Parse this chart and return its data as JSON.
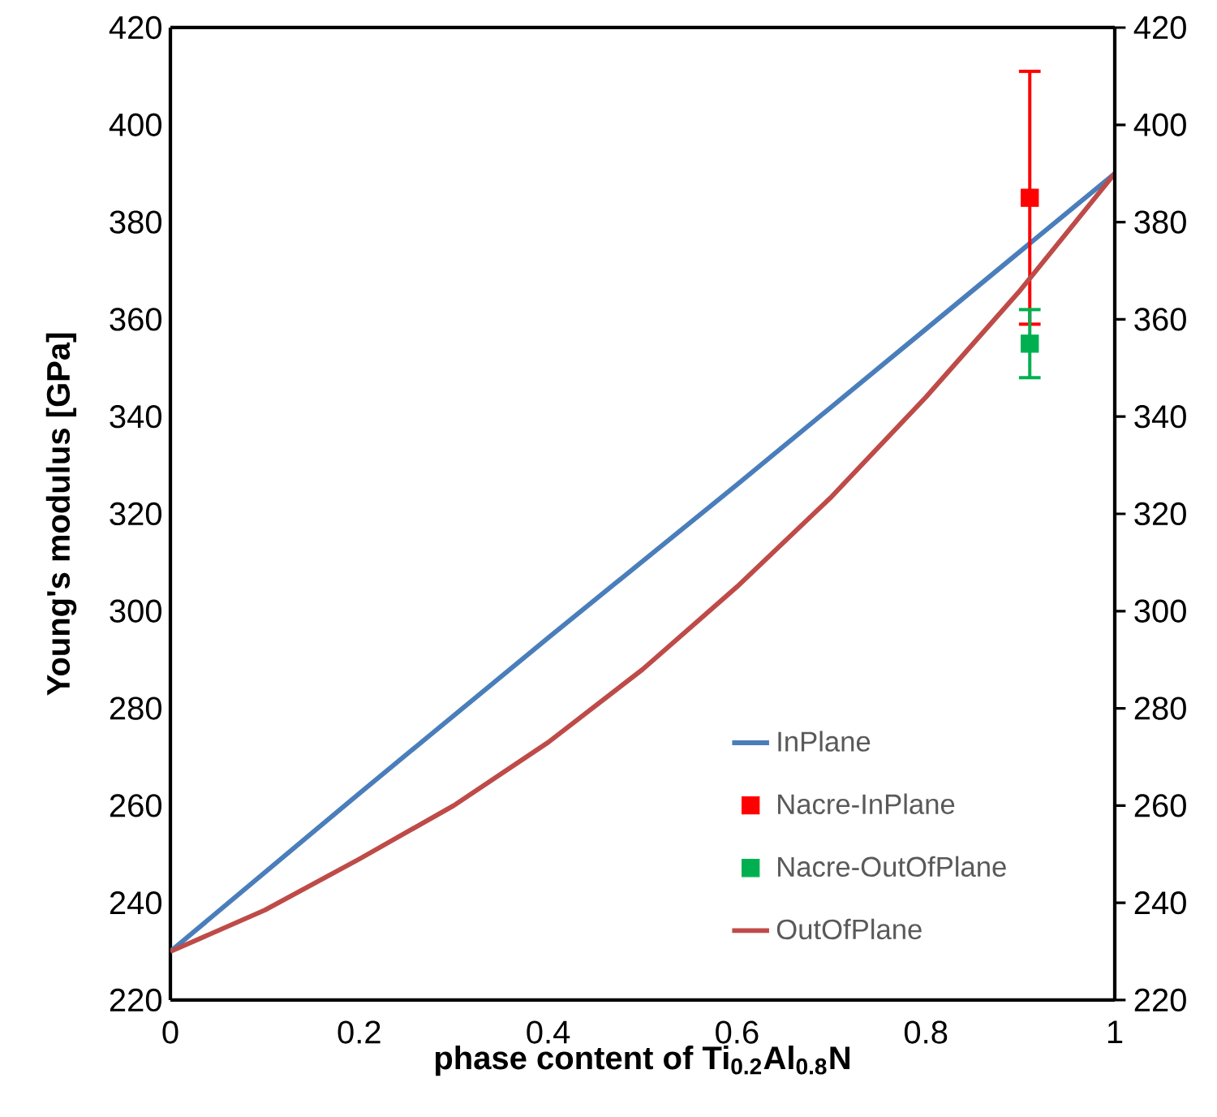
{
  "chart_data": {
    "type": "line",
    "xlabel": "phase content of Ti$_{0.2}$Al$_{0.8}$N",
    "ylabel": "Young's modulus [GPa]",
    "xlim": [
      0,
      1
    ],
    "xticks": [
      0,
      0.2,
      0.4,
      0.6,
      0.8,
      1
    ],
    "ylim": [
      220,
      420
    ],
    "yticks": [
      220,
      240,
      260,
      280,
      300,
      320,
      340,
      360,
      380,
      400,
      420
    ],
    "y2lim": [
      220,
      420
    ],
    "y2ticks": [
      220,
      240,
      260,
      280,
      300,
      320,
      340,
      360,
      380,
      400,
      420
    ],
    "legend": "bottom right",
    "grid": false,
    "series": [
      {
        "name": "InPlane",
        "color": "#4a7ebb",
        "marker": "none",
        "line_style": "solid",
        "x": [
          0,
          0.2,
          0.4,
          0.6,
          0.8,
          1
        ],
        "values": [
          230,
          262.5,
          294.5,
          326,
          358,
          390
        ]
      },
      {
        "name": "Nacre-InPlane",
        "color": "#ff0000",
        "type": "scatter",
        "marker": "square",
        "x": [
          0.91
        ],
        "values": [
          385
        ],
        "errors": [
          26
        ]
      },
      {
        "name": "Nacre-OutOfPlane",
        "color": "#00b050",
        "type": "scatter",
        "marker": "square",
        "x": [
          0.91
        ],
        "values": [
          355
        ],
        "errors": [
          7
        ]
      },
      {
        "name": "OutOfPlane",
        "color": "#be4b48",
        "marker": "none",
        "line_style": "solid",
        "x": [
          0,
          0.1,
          0.2,
          0.3,
          0.4,
          0.5,
          0.6,
          0.7,
          0.8,
          0.9,
          1
        ],
        "values": [
          230,
          238.5,
          249,
          260,
          273,
          288,
          305,
          323.5,
          344,
          366,
          390
        ]
      }
    ]
  }
}
